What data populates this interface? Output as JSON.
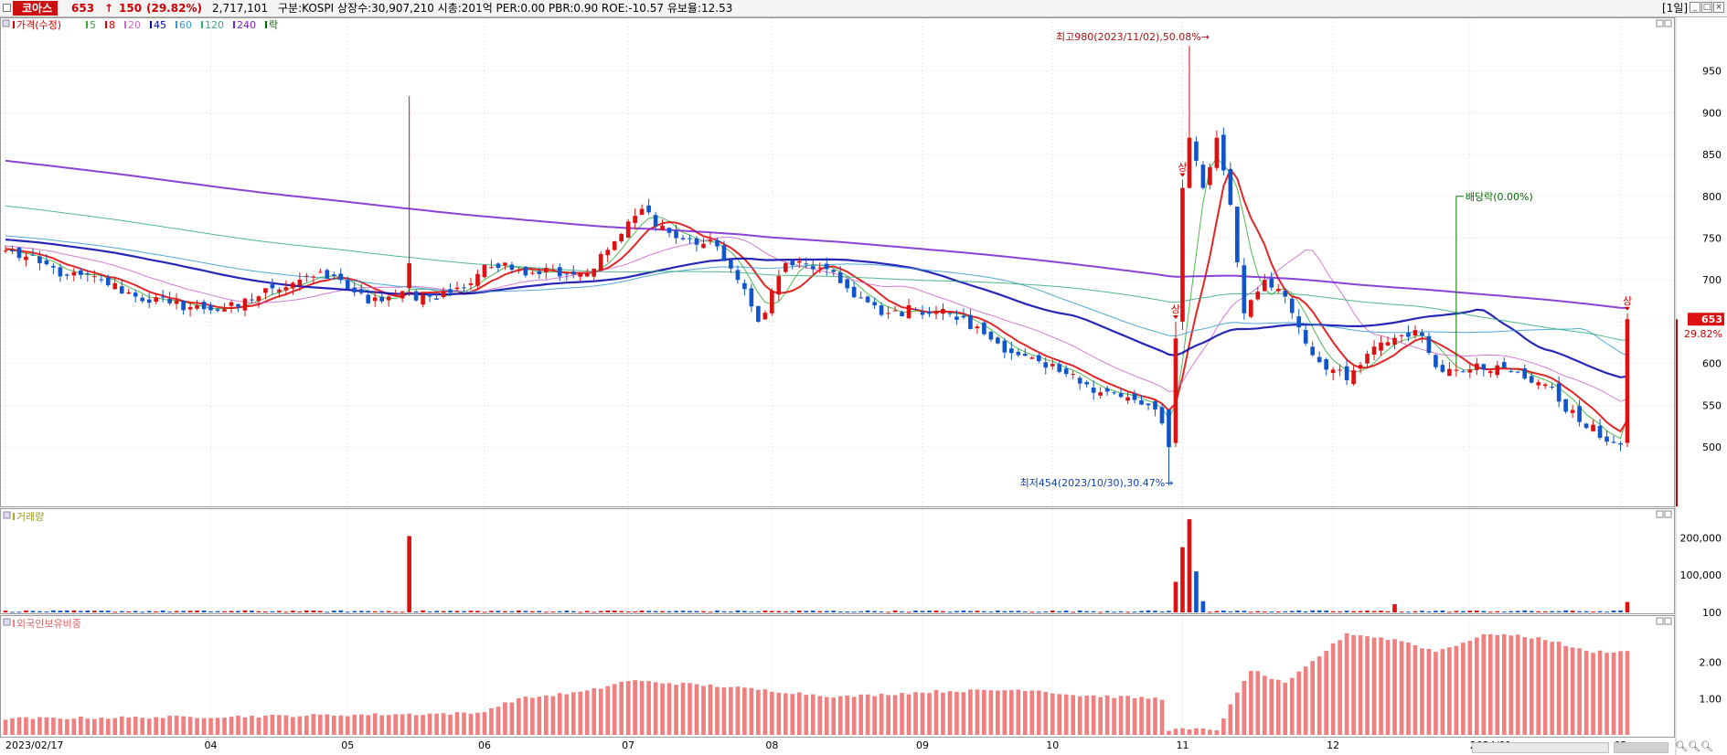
{
  "header": {
    "stock_name": "코아스",
    "price": "653",
    "change_arrow": "↑",
    "change": "150",
    "change_pct": "(29.82%)",
    "volume": "2,717,101",
    "info": "구분:KOSPI 상장수:30,907,210 시총:201억 PER:0.00 PBR:0.90 ROE:-10.57 유보율:12.53",
    "period": "[1일]"
  },
  "legend": {
    "items": [
      {
        "label": "가격(수정)",
        "color": "#cc0000"
      },
      {
        "label": "5",
        "color": "#33aa33"
      },
      {
        "label": "8",
        "color": "#dd0000"
      },
      {
        "label": "20",
        "color": "#cc66cc"
      },
      {
        "label": "45",
        "color": "#0000aa"
      },
      {
        "label": "60",
        "color": "#3399cc"
      },
      {
        "label": "120",
        "color": "#33aa77"
      },
      {
        "label": "240",
        "color": "#7722cc"
      },
      {
        "label": "락",
        "color": "#006600"
      }
    ]
  },
  "colors": {
    "up": "#dd1111",
    "down": "#1155cc",
    "foreign_bar": "#f08080",
    "grid": "#d8d8d8"
  },
  "chart_data": [
    {
      "type": "candlestick",
      "name": "price",
      "ylim": [
        440,
        990
      ],
      "yticks": [
        500,
        550,
        600,
        650,
        700,
        750,
        800,
        850,
        900,
        950
      ],
      "xticks": [
        {
          "label": "2023/02/17",
          "date": "2023-02-17"
        },
        {
          "label": "04",
          "date": "2023-04-03"
        },
        {
          "label": "05",
          "date": "2023-05-02"
        },
        {
          "label": "06",
          "date": "2023-06-01"
        },
        {
          "label": "07",
          "date": "2023-07-03"
        },
        {
          "label": "08",
          "date": "2023-08-01"
        },
        {
          "label": "09",
          "date": "2023-09-01"
        },
        {
          "label": "10",
          "date": "2023-10-04"
        },
        {
          "label": "11",
          "date": "2023-11-01"
        },
        {
          "label": "12",
          "date": "2023-12-01"
        },
        {
          "label": "2024/01",
          "date": "2024-01-02"
        },
        {
          "label": "02",
          "date": "2024-02-01"
        }
      ],
      "anchors": [
        {
          "date": "2023-02-17",
          "close": 735
        },
        {
          "date": "2023-02-24",
          "close": 720
        },
        {
          "date": "2023-03-03",
          "close": 705
        },
        {
          "date": "2023-03-10",
          "close": 700
        },
        {
          "date": "2023-03-17",
          "close": 680
        },
        {
          "date": "2023-03-24",
          "close": 672
        },
        {
          "date": "2023-03-31",
          "close": 665
        },
        {
          "date": "2023-04-07",
          "close": 668
        },
        {
          "date": "2023-04-14",
          "close": 690
        },
        {
          "date": "2023-04-21",
          "close": 705
        },
        {
          "date": "2023-04-28",
          "close": 700
        },
        {
          "date": "2023-05-05",
          "close": 672
        },
        {
          "date": "2023-05-12",
          "close": 682
        },
        {
          "date": "2023-05-19",
          "close": 680
        },
        {
          "date": "2023-05-26",
          "close": 690
        },
        {
          "date": "2023-06-01",
          "close": 718
        },
        {
          "date": "2023-06-09",
          "close": 712
        },
        {
          "date": "2023-06-16",
          "close": 712
        },
        {
          "date": "2023-06-23",
          "close": 708
        },
        {
          "date": "2023-06-30",
          "close": 755
        },
        {
          "date": "2023-07-05",
          "close": 785
        },
        {
          "date": "2023-07-12",
          "close": 750
        },
        {
          "date": "2023-07-20",
          "close": 740
        },
        {
          "date": "2023-07-25",
          "close": 700
        },
        {
          "date": "2023-07-28",
          "close": 650
        },
        {
          "date": "2023-08-03",
          "close": 720
        },
        {
          "date": "2023-08-10",
          "close": 715
        },
        {
          "date": "2023-08-17",
          "close": 690
        },
        {
          "date": "2023-08-24",
          "close": 658
        },
        {
          "date": "2023-08-31",
          "close": 665
        },
        {
          "date": "2023-09-07",
          "close": 660
        },
        {
          "date": "2023-09-14",
          "close": 635
        },
        {
          "date": "2023-09-21",
          "close": 610
        },
        {
          "date": "2023-09-27",
          "close": 595
        },
        {
          "date": "2023-10-05",
          "close": 590
        },
        {
          "date": "2023-10-12",
          "close": 575
        },
        {
          "date": "2023-10-19",
          "close": 560
        },
        {
          "date": "2023-10-26",
          "close": 545
        },
        {
          "date": "2023-10-30",
          "close": 500
        },
        {
          "date": "2023-10-31",
          "close": 630
        },
        {
          "date": "2023-11-01",
          "close": 810
        },
        {
          "date": "2023-11-02",
          "close": 870
        },
        {
          "date": "2023-11-06",
          "close": 810
        },
        {
          "date": "2023-11-08",
          "close": 870
        },
        {
          "date": "2023-11-10",
          "close": 790
        },
        {
          "date": "2023-11-14",
          "close": 660
        },
        {
          "date": "2023-11-17",
          "close": 700
        },
        {
          "date": "2023-11-22",
          "close": 680
        },
        {
          "date": "2023-11-28",
          "close": 610
        },
        {
          "date": "2023-12-05",
          "close": 580
        },
        {
          "date": "2023-12-12",
          "close": 625
        },
        {
          "date": "2023-12-19",
          "close": 640
        },
        {
          "date": "2023-12-26",
          "close": 590
        },
        {
          "date": "2024-01-03",
          "close": 600
        },
        {
          "date": "2024-01-10",
          "close": 590
        },
        {
          "date": "2024-01-17",
          "close": 575
        },
        {
          "date": "2024-01-24",
          "close": 530
        },
        {
          "date": "2024-01-31",
          "close": 505
        },
        {
          "date": "2024-02-01",
          "close": 503
        },
        {
          "date": "2024-02-02",
          "close": 653
        }
      ],
      "annotations": [
        {
          "label": "최고980(2023/11/02),50.08%→",
          "date": "2023-11-02",
          "value": 980
        },
        {
          "label": "최저454(2023/10/30),30.47%→",
          "date": "2023-10-30",
          "value": 454
        },
        {
          "label": "배당락(0.00%)",
          "date": "2023-12-28",
          "value": 800
        }
      ],
      "limit_up_marks": [
        {
          "label": "상",
          "date": "2023-10-31"
        },
        {
          "label": "상",
          "date": "2023-11-01"
        },
        {
          "label": "상",
          "date": "2024-02-02"
        }
      ],
      "current_price": {
        "value": "653",
        "pct": "29.82%"
      },
      "moving_averages": [
        {
          "name": "5",
          "period": 5
        },
        {
          "name": "8",
          "period": 8
        },
        {
          "name": "20",
          "period": 20
        },
        {
          "name": "45",
          "period": 45
        },
        {
          "name": "60",
          "period": 60
        },
        {
          "name": "120",
          "period": 120
        },
        {
          "name": "240",
          "period": 240
        }
      ]
    },
    {
      "type": "bar",
      "name": "volume",
      "title": "거래량",
      "ylim": [
        0,
        260000
      ],
      "yticks": [
        {
          "v": 100,
          "label": "100"
        },
        {
          "v": 100000,
          "label": "100,000"
        },
        {
          "v": 200000,
          "label": "200,000"
        }
      ],
      "spikes": [
        {
          "date": "2023-05-16",
          "value": 205000
        },
        {
          "date": "2023-10-31",
          "value": 82000
        },
        {
          "date": "2023-11-01",
          "value": 175000
        },
        {
          "date": "2023-11-02",
          "value": 250000
        },
        {
          "date": "2023-11-03",
          "value": 110000
        },
        {
          "date": "2023-11-06",
          "value": 30000
        },
        {
          "date": "2023-12-14",
          "value": 22000
        },
        {
          "date": "2024-02-02",
          "value": 28000
        }
      ]
    },
    {
      "type": "bar",
      "name": "foreign_ownership",
      "title": "외국인보유비중",
      "ylim": [
        0,
        3.0
      ],
      "yticks": [
        {
          "v": 1.0,
          "label": "1.00"
        },
        {
          "v": 2.0,
          "label": "2.00"
        }
      ],
      "anchors": [
        {
          "date": "2023-02-17",
          "value": 0.45
        },
        {
          "date": "2023-04-03",
          "value": 0.5
        },
        {
          "date": "2023-04-28",
          "value": 0.55
        },
        {
          "date": "2023-05-31",
          "value": 0.6
        },
        {
          "date": "2023-06-09",
          "value": 1.0
        },
        {
          "date": "2023-06-23",
          "value": 1.2
        },
        {
          "date": "2023-07-03",
          "value": 1.5
        },
        {
          "date": "2023-07-20",
          "value": 1.35
        },
        {
          "date": "2023-08-15",
          "value": 1.05
        },
        {
          "date": "2023-09-05",
          "value": 1.2
        },
        {
          "date": "2023-09-25",
          "value": 1.25
        },
        {
          "date": "2023-10-10",
          "value": 1.1
        },
        {
          "date": "2023-10-27",
          "value": 1.0
        },
        {
          "date": "2023-10-30",
          "value": 0.15
        },
        {
          "date": "2023-11-08",
          "value": 0.15
        },
        {
          "date": "2023-11-15",
          "value": 1.8
        },
        {
          "date": "2023-11-22",
          "value": 1.4
        },
        {
          "date": "2023-12-05",
          "value": 2.8
        },
        {
          "date": "2023-12-15",
          "value": 2.6
        },
        {
          "date": "2023-12-22",
          "value": 2.3
        },
        {
          "date": "2024-01-05",
          "value": 2.8
        },
        {
          "date": "2024-01-17",
          "value": 2.65
        },
        {
          "date": "2024-01-25",
          "value": 2.3
        },
        {
          "date": "2024-02-02",
          "value": 2.3
        }
      ]
    }
  ]
}
